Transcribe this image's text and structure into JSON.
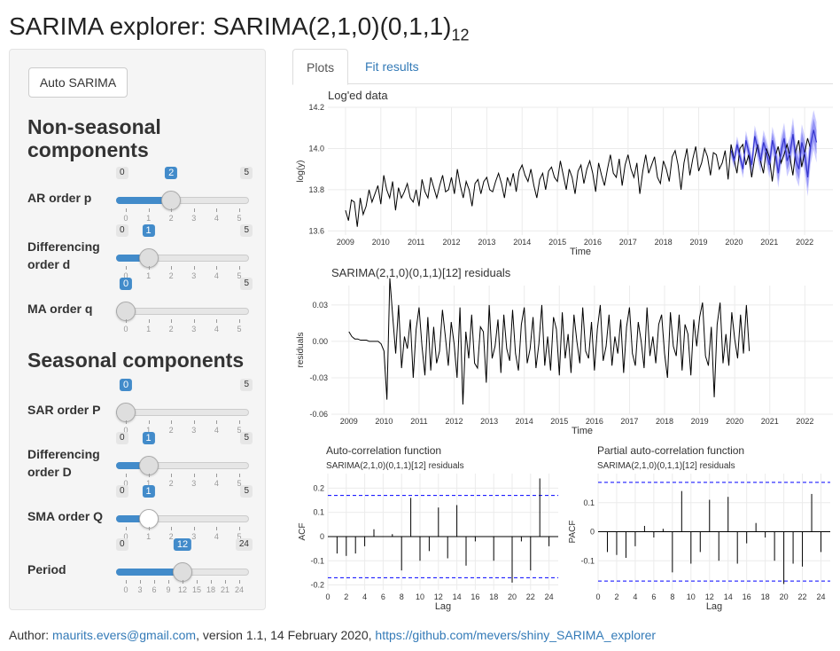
{
  "page": {
    "title": "SARIMA explorer: SARIMA(2,1,0)(0,1,1)",
    "title_subscript": "12"
  },
  "sidebar": {
    "auto_button": "Auto SARIMA",
    "nonseasonal_heading_line1": "Non-seasonal",
    "nonseasonal_heading_line2": "components",
    "seasonal_heading": "Seasonal components",
    "sliders": [
      {
        "id": "ar",
        "label_lines": [
          "AR order p"
        ],
        "min": 0,
        "max": 5,
        "value": 2,
        "ticks": [
          "0",
          "1",
          "2",
          "3",
          "4",
          "5"
        ]
      },
      {
        "id": "d",
        "label_lines": [
          "Differencing",
          "order d"
        ],
        "min": 0,
        "max": 5,
        "value": 1,
        "ticks": [
          "0",
          "1",
          "2",
          "3",
          "4",
          "5"
        ]
      },
      {
        "id": "ma",
        "label_lines": [
          "MA order q"
        ],
        "min": 0,
        "max": 5,
        "value": 0,
        "ticks": [
          "0",
          "1",
          "2",
          "3",
          "4",
          "5"
        ]
      },
      {
        "id": "sar",
        "label_lines": [
          "SAR order P"
        ],
        "min": 0,
        "max": 5,
        "value": 0,
        "ticks": [
          "0",
          "1",
          "2",
          "3",
          "4",
          "5"
        ]
      },
      {
        "id": "sd",
        "label_lines": [
          "Differencing",
          "order D"
        ],
        "min": 0,
        "max": 5,
        "value": 1,
        "ticks": [
          "0",
          "1",
          "2",
          "3",
          "4",
          "5"
        ]
      },
      {
        "id": "sma",
        "label_lines": [
          "SMA order Q"
        ],
        "min": 0,
        "max": 5,
        "value": 1,
        "ticks": [
          "0",
          "1",
          "2",
          "3",
          "4",
          "5"
        ]
      },
      {
        "id": "period",
        "label_lines": [
          "Period"
        ],
        "min": 0,
        "max": 24,
        "value": 12,
        "ticks": [
          "0",
          "3",
          "6",
          "9",
          "12",
          "15",
          "18",
          "21",
          "24"
        ]
      }
    ]
  },
  "tabs": [
    "Plots",
    "Fit results"
  ],
  "colors": {
    "accent": "#428bca",
    "link": "#337ab7",
    "series": "#000000",
    "forecast": "#3333cc",
    "band": "#a0a0ff",
    "bound": "#0000ff"
  },
  "footer": {
    "prefix": "Author: ",
    "email": "maurits.evers@gmail.com",
    "middle": ", version 1.1, 14 February 2020, ",
    "url": "https://github.com/mevers/shiny_SARIMA_explorer"
  },
  "chart_data": [
    {
      "type": "line",
      "title": "Log'ed data",
      "xlabel": "Time",
      "ylabel": "log(y)",
      "xlim": [
        2008.5,
        2022.8
      ],
      "ylim": [
        13.58,
        14.2
      ],
      "x_ticks": [
        2009,
        2010,
        2011,
        2012,
        2013,
        2014,
        2015,
        2016,
        2017,
        2018,
        2019,
        2020,
        2021,
        2022
      ],
      "y_ticks": [
        13.6,
        13.8,
        14.0,
        14.2
      ],
      "series": [
        {
          "x_start": 2009.0,
          "x_step": 0.08333,
          "values": [
            13.7,
            13.65,
            13.75,
            13.74,
            13.62,
            13.76,
            13.68,
            13.72,
            13.8,
            13.74,
            13.78,
            13.82,
            13.73,
            13.87,
            13.8,
            13.76,
            13.84,
            13.7,
            13.81,
            13.76,
            13.79,
            13.83,
            13.76,
            13.74,
            13.8,
            13.72,
            13.85,
            13.79,
            13.76,
            13.86,
            13.81,
            13.76,
            13.82,
            13.87,
            13.79,
            13.8,
            13.86,
            13.78,
            13.9,
            13.82,
            13.76,
            13.84,
            13.8,
            13.72,
            13.83,
            13.85,
            13.78,
            13.84,
            13.86,
            13.8,
            13.79,
            13.84,
            13.88,
            13.83,
            13.76,
            13.86,
            13.82,
            13.88,
            13.79,
            13.89,
            13.92,
            13.87,
            13.84,
            13.9,
            13.82,
            13.76,
            13.85,
            13.88,
            13.8,
            13.89,
            13.91,
            13.86,
            13.84,
            13.94,
            13.87,
            13.8,
            13.9,
            13.86,
            13.78,
            13.89,
            13.92,
            13.83,
            13.9,
            13.94,
            13.88,
            13.79,
            13.93,
            13.87,
            13.82,
            13.9,
            13.97,
            13.88,
            13.86,
            13.95,
            13.82,
            13.92,
            13.97,
            13.9,
            13.86,
            13.93,
            13.78,
            13.89,
            13.97,
            13.88,
            13.92,
            13.96,
            13.86,
            13.83,
            13.94,
            13.9,
            13.84,
            13.96,
            13.99,
            13.92,
            13.8,
            13.93,
            14.0,
            13.87,
            13.95,
            14.01,
            13.89,
            13.93,
            14.0,
            13.96,
            13.87,
            13.98,
            13.97,
            13.9,
            13.93,
            13.99,
            13.85,
            14.02,
            13.95,
            13.88,
            14.0,
            14.02,
            13.92,
            13.97,
            13.86,
            13.95,
            14.02,
            13.94,
            13.88,
            14.0,
            13.96,
            13.84,
            13.96,
            14.01,
            13.93,
            13.97,
            14.02,
            13.96,
            13.87,
            13.99,
            14.04,
            13.91,
            13.98,
            14.05,
            14.0
          ]
        },
        {
          "name": "",
          "x_start": 2019.92,
          "x_step": 0.08333,
          "values": [
            13.99,
            13.94,
            14.02,
            13.96,
            13.9,
            14.04,
            13.98,
            13.92,
            14.06,
            14.0,
            13.94,
            14.03,
            13.98,
            13.92,
            14.04,
            13.98,
            13.88,
            13.99,
            14.05,
            13.94,
            13.98,
            14.07,
            13.94,
            13.9,
            14.03,
            13.97,
            13.86,
            14.02,
            14.09,
            14.03
          ]
        }
      ]
    },
    {
      "type": "line",
      "title": "SARIMA(2,1,0)(0,1,1)[12] residuals",
      "xlabel": "Time",
      "ylabel": "residuals",
      "xlim": [
        2008.5,
        2022.8
      ],
      "ylim": [
        -0.06,
        0.046
      ],
      "x_ticks": [
        2009,
        2010,
        2011,
        2012,
        2013,
        2014,
        2015,
        2016,
        2017,
        2018,
        2019,
        2020,
        2021,
        2022
      ],
      "y_ticks": [
        -0.06,
        -0.03,
        0.0,
        0.03
      ],
      "series": [
        {
          "x_start": 2009.0,
          "x_step": 0.08333,
          "values": [
            0.008,
            0.004,
            0.002,
            0.002,
            0.001,
            0.001,
            0.001,
            0.0,
            0.0,
            0.0,
            0.0,
            -0.002,
            -0.008,
            -0.048,
            0.052,
            0.02,
            -0.01,
            0.03,
            -0.022,
            0.004,
            -0.006,
            0.018,
            -0.03,
            0.01,
            0.028,
            -0.004,
            -0.028,
            0.02,
            -0.024,
            0.012,
            -0.018,
            -0.008,
            0.026,
            0.004,
            -0.02,
            0.016,
            -0.002,
            -0.03,
            0.028,
            -0.052,
            0.008,
            -0.014,
            0.022,
            -0.018,
            -0.022,
            0.012,
            0.008,
            -0.034,
            0.03,
            -0.014,
            -0.004,
            0.018,
            -0.026,
            0.022,
            -0.006,
            -0.016,
            0.026,
            -0.01,
            -0.024,
            0.014,
            0.028,
            -0.018,
            -0.006,
            0.02,
            -0.022,
            -0.002,
            0.03,
            -0.02,
            0.004,
            -0.024,
            0.02,
            0.01,
            -0.028,
            0.024,
            -0.014,
            0.006,
            -0.026,
            0.022,
            0.0,
            -0.018,
            0.028,
            -0.008,
            -0.014,
            0.016,
            -0.024,
            0.01,
            0.03,
            -0.016,
            -0.004,
            0.022,
            -0.02,
            0.004,
            -0.01,
            0.018,
            -0.026,
            0.012,
            0.028,
            -0.01,
            -0.02,
            0.016,
            0.0,
            -0.022,
            0.028,
            -0.012,
            0.004,
            -0.018,
            0.014,
            0.022,
            -0.01,
            -0.03,
            0.024,
            -0.004,
            -0.012,
            0.022,
            -0.024,
            0.014,
            0.006,
            -0.028,
            0.018,
            -0.004,
            0.02,
            0.032,
            -0.012,
            -0.02,
            0.012,
            -0.046,
            0.014,
            0.032,
            -0.018,
            0.006,
            -0.02,
            0.024,
            0.002,
            -0.014,
            0.022,
            -0.01,
            0.03,
            -0.008
          ]
        }
      ]
    },
    {
      "type": "bar",
      "title": "Auto-correlation function",
      "subtitle": "SARIMA(2,1,0)(0,1,1)[12] residuals",
      "xlabel": "Lag",
      "ylabel": "ACF",
      "xlim": [
        0,
        25
      ],
      "ylim": [
        -0.22,
        0.26
      ],
      "x_ticks": [
        0,
        2,
        4,
        6,
        8,
        10,
        12,
        14,
        16,
        18,
        20,
        22,
        24
      ],
      "y_ticks": [
        -0.2,
        -0.1,
        0.0,
        0.1,
        0.2
      ],
      "confidence_bounds": [
        -0.17,
        0.17
      ],
      "x": [
        1,
        2,
        3,
        4,
        5,
        6,
        7,
        8,
        9,
        10,
        11,
        12,
        13,
        14,
        15,
        16,
        17,
        18,
        19,
        20,
        21,
        22,
        23,
        24
      ],
      "values": [
        -0.07,
        -0.08,
        -0.07,
        -0.04,
        0.03,
        0.0,
        0.01,
        -0.14,
        0.16,
        -0.1,
        -0.06,
        0.12,
        -0.09,
        0.13,
        -0.12,
        -0.02,
        0.0,
        -0.1,
        0.0,
        -0.19,
        -0.02,
        -0.14,
        0.24,
        -0.04
      ]
    },
    {
      "type": "bar",
      "title": "Partial auto-correlation function",
      "subtitle": "SARIMA(2,1,0)(0,1,1)[12] residuals",
      "xlabel": "Lag",
      "ylabel": "PACF",
      "xlim": [
        0,
        25
      ],
      "ylim": [
        -0.2,
        0.2
      ],
      "x_ticks": [
        0,
        2,
        4,
        6,
        8,
        10,
        12,
        14,
        16,
        18,
        20,
        22,
        24
      ],
      "y_ticks": [
        -0.1,
        0.0,
        0.1
      ],
      "confidence_bounds": [
        -0.17,
        0.17
      ],
      "x": [
        1,
        2,
        3,
        4,
        5,
        6,
        7,
        8,
        9,
        10,
        11,
        12,
        13,
        14,
        15,
        16,
        17,
        18,
        19,
        20,
        21,
        22,
        23,
        24
      ],
      "values": [
        -0.07,
        -0.08,
        -0.09,
        -0.05,
        0.02,
        -0.02,
        0.01,
        -0.14,
        0.14,
        -0.11,
        -0.07,
        0.11,
        -0.1,
        0.12,
        -0.11,
        -0.04,
        0.03,
        -0.02,
        -0.1,
        -0.18,
        -0.11,
        -0.12,
        0.13,
        -0.07
      ]
    }
  ]
}
